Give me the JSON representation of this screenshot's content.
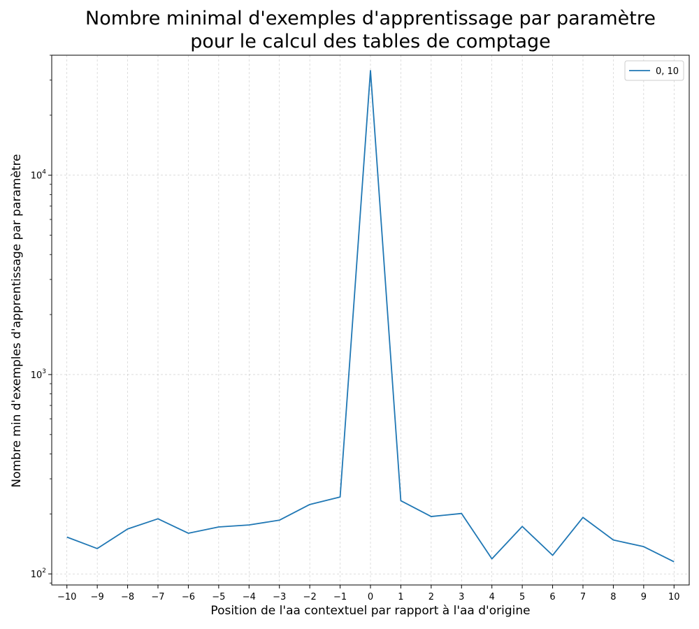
{
  "chart_data": {
    "type": "line",
    "title_lines": [
      "Nombre minimal d'exemples d'apprentissage par paramètre",
      "pour le calcul des tables de comptage"
    ],
    "xlabel": "Position de l'aa contextuel par rapport à l'aa d'origine",
    "ylabel": "Nombre min d'exemples d'apprentissage par paramètre",
    "yscale": "log",
    "ylim": [
      88,
      40000
    ],
    "xlim": [
      -10.5,
      10.5
    ],
    "x": [
      -10,
      -9,
      -8,
      -7,
      -6,
      -5,
      -4,
      -3,
      -2,
      -1,
      0,
      1,
      2,
      3,
      4,
      5,
      6,
      7,
      8,
      9,
      10
    ],
    "x_tick_labels": [
      "−10",
      "−9",
      "−8",
      "−7",
      "−6",
      "−5",
      "−4",
      "−3",
      "−2",
      "−1",
      "0",
      "1",
      "2",
      "3",
      "4",
      "5",
      "6",
      "7",
      "8",
      "9",
      "10"
    ],
    "y_ticks": [
      {
        "value": 100,
        "base": "10",
        "exp": "2"
      },
      {
        "value": 1000,
        "base": "10",
        "exp": "3"
      },
      {
        "value": 10000,
        "base": "10",
        "exp": "4"
      }
    ],
    "series": [
      {
        "name": "0, 10",
        "color": "#1f77b4",
        "values": [
          153,
          134,
          168,
          189,
          160,
          172,
          176,
          186,
          223,
          243,
          33500,
          233,
          194,
          201,
          119,
          173,
          124,
          192,
          148,
          137,
          115
        ]
      }
    ],
    "grid": true,
    "legend_position": "top-right"
  }
}
